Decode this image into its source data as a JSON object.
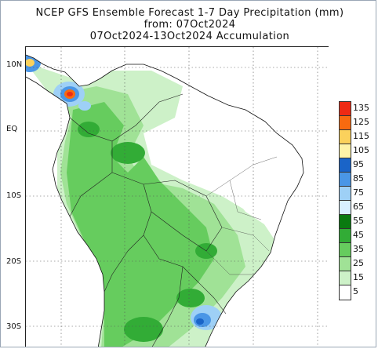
{
  "title": {
    "line1": "NCEP GFS Ensemble Forecast 1-7 Day Precipitation (mm)",
    "line2": "from: 07Oct2024",
    "line3": "07Oct2024-13Oct2024 Accumulation"
  },
  "lat_labels": [
    "10N",
    "EQ",
    "10S",
    "20S",
    "30S"
  ],
  "legend": {
    "levels": [
      "135",
      "125",
      "115",
      "105",
      "95",
      "85",
      "75",
      "65",
      "55",
      "45",
      "35",
      "25",
      "15",
      "5"
    ],
    "colors": [
      "#ee2a14",
      "#f86a10",
      "#fbd15c",
      "#fff3a8",
      "#1a64c8",
      "#4a96e6",
      "#9ed0f6",
      "#d8f0ff",
      "#0a7a10",
      "#32ac36",
      "#66cc5e",
      "#a0e296",
      "#cdf1c8",
      "#ffffff"
    ]
  },
  "grid": {
    "style": "dotted"
  }
}
